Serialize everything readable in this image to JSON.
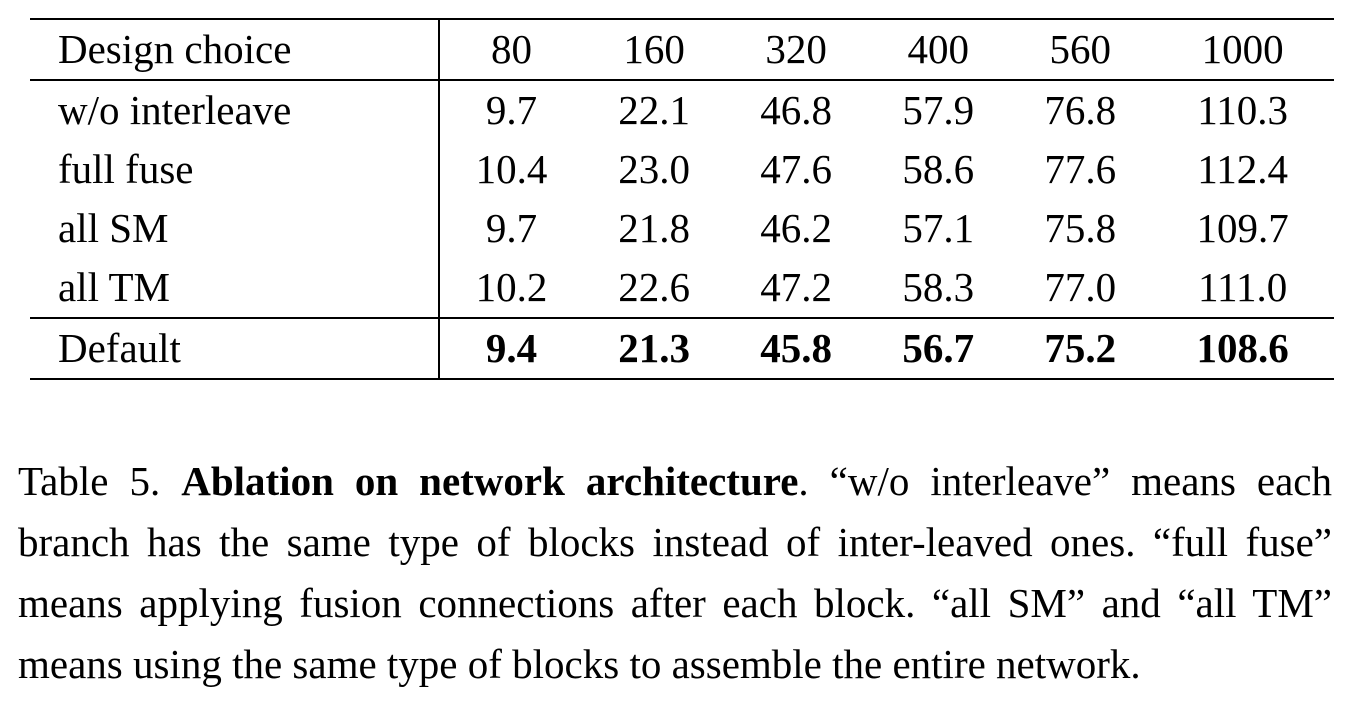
{
  "table": {
    "header_label": "Design choice",
    "columns": [
      "80",
      "160",
      "320",
      "400",
      "560",
      "1000"
    ],
    "rows": [
      {
        "label": "w/o interleave",
        "values": [
          "9.7",
          "22.1",
          "46.8",
          "57.9",
          "76.8",
          "110.3"
        ]
      },
      {
        "label": "full fuse",
        "values": [
          "10.4",
          "23.0",
          "47.6",
          "58.6",
          "77.6",
          "112.4"
        ]
      },
      {
        "label": "all SM",
        "values": [
          "9.7",
          "21.8",
          "46.2",
          "57.1",
          "75.8",
          "109.7"
        ]
      },
      {
        "label": "all TM",
        "values": [
          "10.2",
          "22.6",
          "47.2",
          "58.3",
          "77.0",
          "111.0"
        ]
      }
    ],
    "default_row": {
      "label": "Default",
      "values": [
        "9.4",
        "21.3",
        "45.8",
        "56.7",
        "75.2",
        "108.6"
      ]
    }
  },
  "caption": {
    "prefix": "Table 5. ",
    "title": "Ablation on network architecture",
    "body": ". “w/o interleave” means each branch has the same type of blocks instead of inter-leaved ones. “full fuse” means applying fusion connections after each block. “all SM” and “all TM” means using the same type of blocks to assemble the entire network."
  }
}
